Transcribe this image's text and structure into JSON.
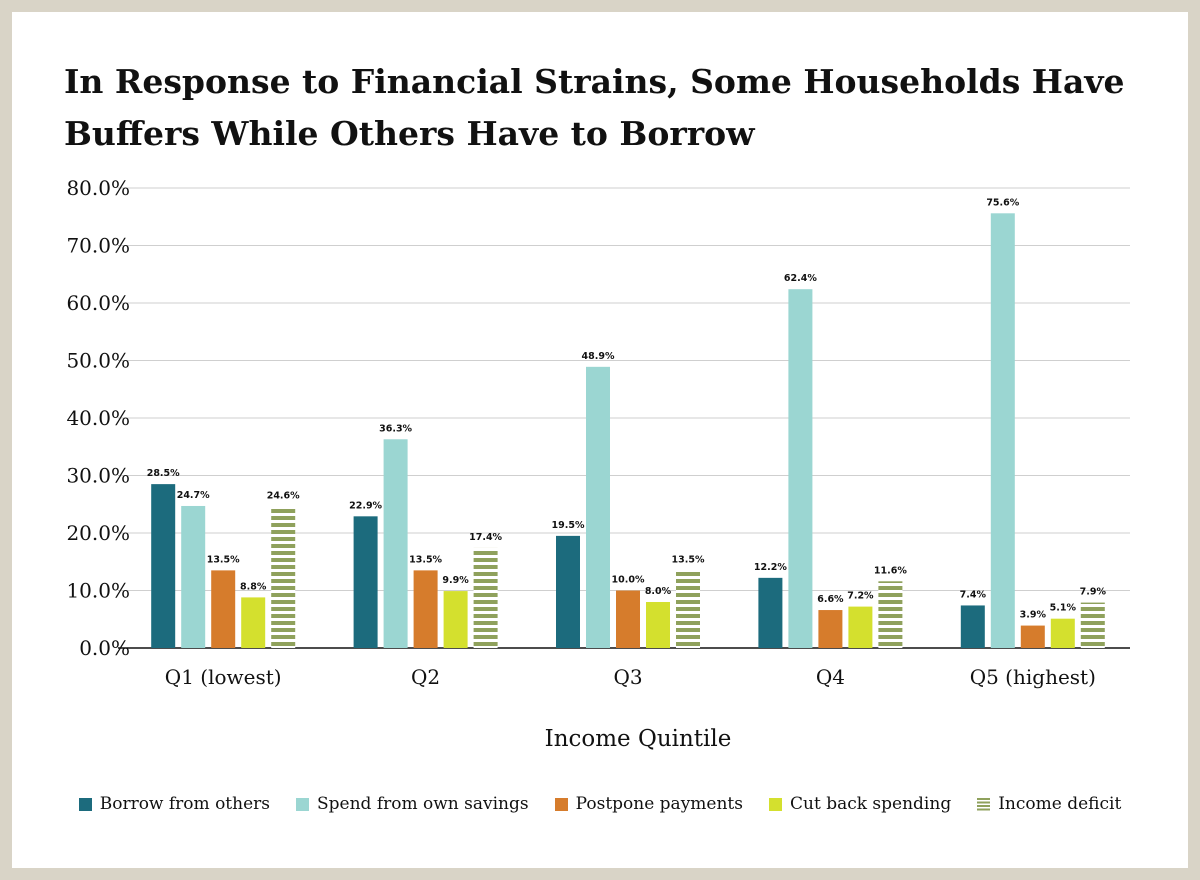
{
  "chart_data": {
    "type": "bar",
    "title": "In Response to Financial Strains, Some Households Have Buffers While Others Have to Borrow",
    "xlabel": "Income Quintile",
    "ylabel": "",
    "ylim": [
      0,
      80
    ],
    "yticks": [
      "0.0%",
      "10.0%",
      "20.0%",
      "30.0%",
      "40.0%",
      "50.0%",
      "60.0%",
      "70.0%",
      "80.0%"
    ],
    "grid": true,
    "legend_position": "bottom",
    "categories": [
      "Q1 (lowest)",
      "Q2",
      "Q3",
      "Q4",
      "Q5 (highest)"
    ],
    "series": [
      {
        "name": "Borrow from others",
        "color": "#1c6b7d",
        "pattern": "solid",
        "values": [
          28.5,
          22.9,
          19.5,
          12.2,
          7.4
        ],
        "labels": [
          "28.5%",
          "22.9%",
          "19.5%",
          "12.2%",
          "7.4%"
        ]
      },
      {
        "name": "Spend from own savings",
        "color": "#9bd6d2",
        "pattern": "solid",
        "values": [
          24.7,
          36.3,
          48.9,
          62.4,
          75.6
        ],
        "labels": [
          "24.7%",
          "36.3%",
          "48.9%",
          "62.4%",
          "75.6%"
        ]
      },
      {
        "name": "Postpone payments",
        "color": "#d67c2c",
        "pattern": "solid",
        "values": [
          13.5,
          13.5,
          10.0,
          6.6,
          3.9
        ],
        "labels": [
          "13.5%",
          "13.5%",
          "10.0%",
          "6.6%",
          "3.9%"
        ]
      },
      {
        "name": "Cut back spending",
        "color": "#d4e02e",
        "pattern": "solid",
        "values": [
          8.8,
          9.9,
          8.0,
          7.2,
          5.1
        ],
        "labels": [
          "8.8%",
          "9.9%",
          "8.0%",
          "7.2%",
          "5.1%"
        ]
      },
      {
        "name": "Income deficit",
        "color": "#8fa15c",
        "pattern": "stripes",
        "values": [
          24.6,
          17.4,
          13.5,
          11.6,
          7.9
        ],
        "labels": [
          "24.6%",
          "17.4%",
          "13.5%",
          "11.6%",
          "7.9%"
        ]
      }
    ]
  }
}
